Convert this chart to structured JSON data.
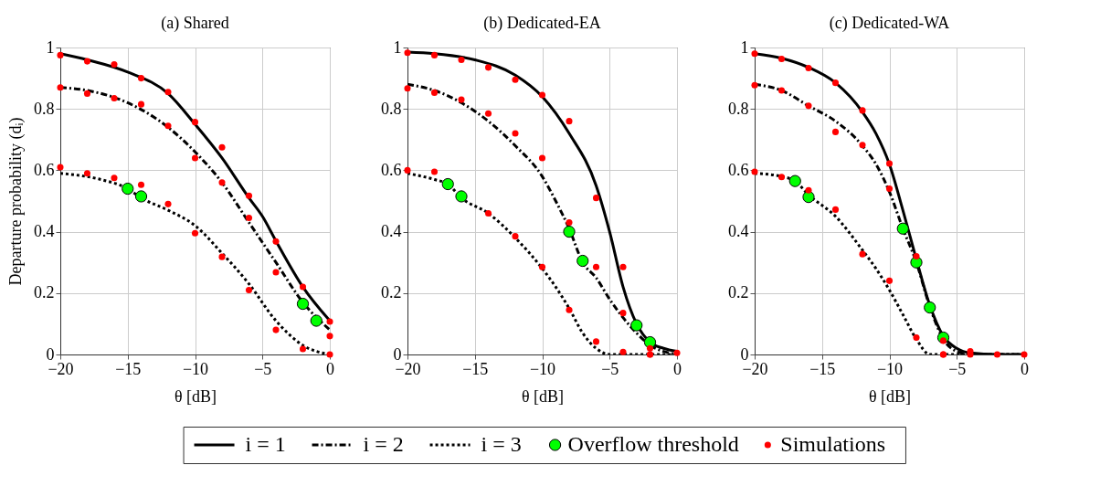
{
  "chart_data": [
    {
      "type": "line",
      "title": "(a) Shared",
      "xlabel": "θ [dB]",
      "ylabel": "Departure probability (dᵢ)",
      "xlim": [
        -20,
        0
      ],
      "xticks": [
        -20,
        -15,
        -10,
        -5,
        0
      ],
      "ylim": [
        0,
        1
      ],
      "yticks": [
        0,
        0.2,
        0.4,
        0.6,
        0.8,
        1
      ],
      "grid": true,
      "legend": "bottom",
      "series": [
        {
          "name": "i = 1",
          "type": "line",
          "color": "#000000",
          "line_style": "solid",
          "x": [
            -20,
            -18,
            -15,
            -12,
            -10,
            -8,
            -6,
            -5,
            -4,
            -2,
            0
          ],
          "values": [
            0.98,
            0.96,
            0.92,
            0.85,
            0.75,
            0.64,
            0.51,
            0.45,
            0.37,
            0.22,
            0.11
          ]
        },
        {
          "name": "i = 2",
          "type": "line",
          "color": "#000000",
          "line_style": "dashdot",
          "x": [
            -20,
            -18,
            -15,
            -12,
            -10,
            -8,
            -6,
            -4,
            -2,
            0
          ],
          "values": [
            0.87,
            0.86,
            0.82,
            0.74,
            0.66,
            0.56,
            0.43,
            0.3,
            0.17,
            0.08
          ]
        },
        {
          "name": "i = 3",
          "type": "line",
          "color": "#000000",
          "line_style": "dotted",
          "x": [
            -20,
            -17,
            -15,
            -14,
            -12,
            -10,
            -8,
            -6,
            -4,
            -2,
            0
          ],
          "values": [
            0.59,
            0.57,
            0.54,
            0.51,
            0.47,
            0.42,
            0.33,
            0.23,
            0.11,
            0.03,
            0
          ]
        },
        {
          "name": "Overflow threshold",
          "type": "scatter",
          "color": "#00ff00",
          "marker": "circle",
          "x": [
            -15,
            -14,
            -2,
            -1
          ],
          "values": [
            0.54,
            0.515,
            0.165,
            0.11
          ]
        },
        {
          "name": "Simulations",
          "type": "scatter",
          "color": "#ff0000",
          "marker": "circle",
          "x": [
            -20,
            -18,
            -16,
            -14,
            -12,
            -10,
            -8,
            -6,
            -4,
            -2,
            0,
            -20,
            -18,
            -16,
            -14,
            -12,
            -10,
            -8,
            -6,
            -4,
            0,
            -20,
            -18,
            -16,
            -14,
            -12,
            -10,
            -8,
            -6,
            -4,
            -2,
            0
          ],
          "values": [
            0.975,
            0.955,
            0.945,
            0.9,
            0.855,
            0.757,
            0.675,
            0.517,
            0.368,
            0.22,
            0.107,
            0.87,
            0.85,
            0.835,
            0.815,
            0.745,
            0.64,
            0.56,
            0.445,
            0.268,
            0.06,
            0.61,
            0.59,
            0.575,
            0.553,
            0.49,
            0.395,
            0.318,
            0.21,
            0.08,
            0.018,
            0
          ]
        }
      ]
    },
    {
      "type": "line",
      "title": "(b) Dedicated-EA",
      "xlabel": "θ [dB]",
      "xlim": [
        -20,
        0
      ],
      "xticks": [
        -20,
        -15,
        -10,
        -5,
        0
      ],
      "ylim": [
        0,
        1
      ],
      "yticks": [
        0,
        0.2,
        0.4,
        0.6,
        0.8,
        1
      ],
      "grid": true,
      "series": [
        {
          "type": "line",
          "color": "#000000",
          "line_style": "solid",
          "x": [
            -20,
            -18,
            -15,
            -12,
            -10,
            -8,
            -6,
            -5,
            -4,
            -3,
            -2,
            -1,
            0
          ],
          "values": [
            0.985,
            0.98,
            0.96,
            0.91,
            0.84,
            0.72,
            0.55,
            0.4,
            0.22,
            0.1,
            0.04,
            0.02,
            0.01
          ]
        },
        {
          "type": "line",
          "color": "#000000",
          "line_style": "dashdot",
          "x": [
            -20,
            -18,
            -16,
            -14,
            -12,
            -10,
            -9,
            -8,
            -7,
            -6,
            -5,
            -4,
            -3,
            -2,
            -1,
            0
          ],
          "values": [
            0.88,
            0.86,
            0.82,
            0.76,
            0.68,
            0.58,
            0.5,
            0.41,
            0.3,
            0.25,
            0.18,
            0.12,
            0.07,
            0.03,
            0.01,
            0
          ]
        },
        {
          "type": "line",
          "color": "#000000",
          "line_style": "dotted",
          "x": [
            -20,
            -18,
            -17,
            -16,
            -14,
            -12,
            -10,
            -9,
            -8,
            -7,
            -6,
            -5,
            0
          ],
          "values": [
            0.59,
            0.57,
            0.555,
            0.51,
            0.46,
            0.38,
            0.28,
            0.22,
            0.15,
            0.07,
            0.02,
            0,
            0
          ]
        },
        {
          "type": "scatter",
          "color": "#00ff00",
          "marker": "circle",
          "x": [
            -17,
            -16,
            -8,
            -7,
            -3,
            -2
          ],
          "values": [
            0.555,
            0.515,
            0.4,
            0.305,
            0.095,
            0.04
          ]
        },
        {
          "type": "scatter",
          "color": "#ff0000",
          "marker": "circle",
          "x": [
            -20,
            -18,
            -16,
            -14,
            -12,
            -10,
            -8,
            -6,
            -4,
            -2,
            0,
            -20,
            -18,
            -16,
            -14,
            -12,
            -10,
            -8,
            -6,
            -4,
            -2,
            -20,
            -18,
            -14,
            -12,
            -10,
            -8,
            -6,
            -4,
            -2
          ],
          "values": [
            0.983,
            0.975,
            0.96,
            0.935,
            0.895,
            0.845,
            0.76,
            0.51,
            0.285,
            0.02,
            0.005,
            0.867,
            0.853,
            0.83,
            0.785,
            0.72,
            0.64,
            0.43,
            0.285,
            0.135,
            0,
            0.6,
            0.595,
            0.46,
            0.385,
            0.285,
            0.145,
            0.042,
            0.008,
            0
          ]
        }
      ]
    },
    {
      "type": "line",
      "title": "(c) Dedicated-WA",
      "xlabel": "θ [dB]",
      "xlim": [
        -20,
        0
      ],
      "xticks": [
        -20,
        -15,
        -10,
        -5,
        0
      ],
      "ylim": [
        0,
        1
      ],
      "yticks": [
        0,
        0.2,
        0.4,
        0.6,
        0.8,
        1
      ],
      "grid": true,
      "series": [
        {
          "type": "line",
          "color": "#000000",
          "line_style": "solid",
          "x": [
            -20,
            -18,
            -16,
            -14,
            -12,
            -11,
            -10,
            -9,
            -8,
            -7,
            -6,
            -5,
            -4,
            -2,
            0
          ],
          "values": [
            0.98,
            0.965,
            0.935,
            0.885,
            0.79,
            0.72,
            0.62,
            0.47,
            0.31,
            0.16,
            0.06,
            0.02,
            0.005,
            0,
            0
          ]
        },
        {
          "type": "line",
          "color": "#000000",
          "line_style": "dashdot",
          "x": [
            -20,
            -18,
            -16,
            -14,
            -12,
            -11,
            -10,
            -9,
            -8,
            -7,
            -6,
            -5,
            -4,
            0
          ],
          "values": [
            0.88,
            0.86,
            0.81,
            0.76,
            0.68,
            0.62,
            0.53,
            0.41,
            0.3,
            0.155,
            0.05,
            0.01,
            0,
            0
          ]
        },
        {
          "type": "line",
          "color": "#000000",
          "line_style": "dotted",
          "x": [
            -20,
            -18,
            -17,
            -16,
            -14,
            -12,
            -11,
            -10,
            -9,
            -8,
            -7,
            0
          ],
          "values": [
            0.59,
            0.58,
            0.565,
            0.52,
            0.45,
            0.34,
            0.28,
            0.21,
            0.13,
            0.05,
            0,
            0
          ]
        },
        {
          "type": "scatter",
          "color": "#00ff00",
          "marker": "circle",
          "x": [
            -17,
            -16,
            -9,
            -8,
            -7,
            -6
          ],
          "values": [
            0.565,
            0.513,
            0.41,
            0.3,
            0.153,
            0.055
          ]
        },
        {
          "type": "scatter",
          "color": "#ff0000",
          "marker": "circle",
          "x": [
            -20,
            -18,
            -16,
            -14,
            -12,
            -10,
            -8,
            -6,
            -4,
            -2,
            0,
            -20,
            -18,
            -16,
            -14,
            -12,
            -10,
            -6,
            -20,
            -18,
            -16,
            -14,
            -12,
            -10,
            -8,
            -6,
            -4
          ],
          "values": [
            0.98,
            0.963,
            0.933,
            0.885,
            0.795,
            0.622,
            0.32,
            0.045,
            0.01,
            0,
            0,
            0.877,
            0.86,
            0.81,
            0.725,
            0.682,
            0.54,
            0,
            0.595,
            0.578,
            0.535,
            0.472,
            0.327,
            0.24,
            0.055,
            0,
            0
          ]
        }
      ]
    }
  ]
}
